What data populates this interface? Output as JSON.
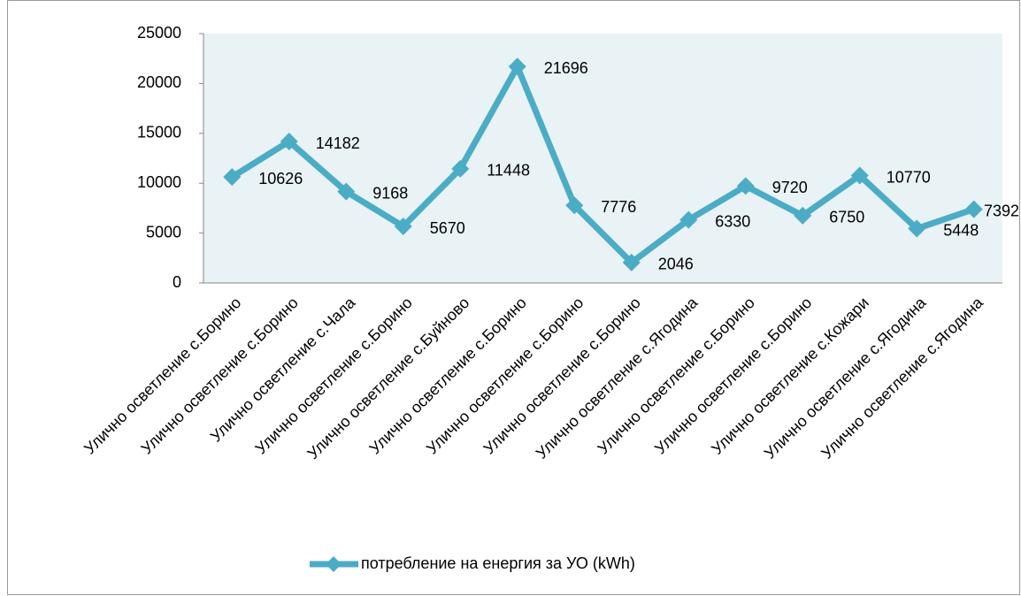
{
  "chart_data": {
    "type": "line",
    "categories": [
      "Улично осветление с.Борино",
      "Улично осветление с.Борино",
      "Улично осветление с.Чала",
      "Улично осветление с.Борино",
      "Улично осветление с.Буйново",
      "Улично осветление с.Борино",
      "Улично осветление с.Борино",
      "Улично осветление с.Борино",
      "Улично осветление с.Ягодина",
      "Улично осветление с.Борино",
      "Улично осветление с.Борино",
      "Улично осветление с.Кожари",
      "Улично осветление с.Ягодина",
      "Улично осветление с.Ягодина"
    ],
    "series": [
      {
        "name": "потребление на енергия за УО (kWh)",
        "color": "#4bacc6",
        "values": [
          10626,
          14182,
          9168,
          5670,
          11448,
          21696,
          7776,
          2046,
          6330,
          9720,
          6750,
          10770,
          5448,
          7392
        ]
      }
    ],
    "ylim": [
      0,
      25000
    ],
    "yticks": [
      0,
      5000,
      10000,
      15000,
      20000,
      25000
    ],
    "legend": "bottom"
  }
}
